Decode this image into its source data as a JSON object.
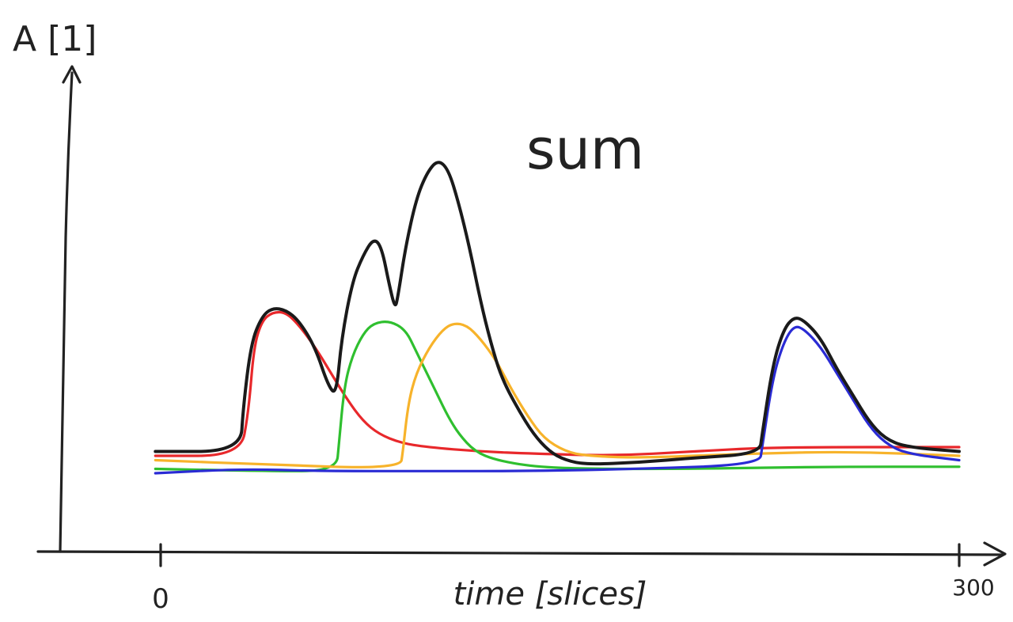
{
  "chart_data": {
    "type": "line",
    "title": "",
    "xlabel": "time [slices]",
    "ylabel": "A [1]",
    "annotation": "sum",
    "x_ticks": [
      {
        "value": 0,
        "label": "0"
      },
      {
        "value": 300,
        "label": "300"
      }
    ],
    "xlim": [
      -30,
      320
    ],
    "ylim": [
      0,
      100
    ],
    "grid": false,
    "legend": "none",
    "series": [
      {
        "color": "#e8282b",
        "points": [
          [
            -2,
            22
          ],
          [
            30,
            22
          ],
          [
            33,
            32
          ],
          [
            35,
            47
          ],
          [
            38,
            53
          ],
          [
            42,
            55
          ],
          [
            47,
            55
          ],
          [
            52,
            52
          ],
          [
            58,
            47
          ],
          [
            64,
            41
          ],
          [
            70,
            35
          ],
          [
            76,
            30
          ],
          [
            82,
            27
          ],
          [
            90,
            25
          ],
          [
            100,
            24
          ],
          [
            120,
            23
          ],
          [
            140,
            22.5
          ],
          [
            170,
            22
          ],
          [
            200,
            23
          ],
          [
            230,
            24
          ],
          [
            300,
            24
          ]
        ]
      },
      {
        "color": "#2fbf2f",
        "points": [
          [
            -2,
            19
          ],
          [
            40,
            18.5
          ],
          [
            66,
            18.5
          ],
          [
            67,
            25
          ],
          [
            69,
            38
          ],
          [
            72,
            45
          ],
          [
            76,
            50
          ],
          [
            80,
            52.5
          ],
          [
            86,
            53
          ],
          [
            92,
            51
          ],
          [
            96,
            46
          ],
          [
            100,
            41
          ],
          [
            104,
            36
          ],
          [
            108,
            31
          ],
          [
            112,
            27
          ],
          [
            118,
            23
          ],
          [
            126,
            21
          ],
          [
            140,
            19.5
          ],
          [
            160,
            19
          ],
          [
            200,
            19
          ],
          [
            250,
            19.5
          ],
          [
            300,
            19.5
          ]
        ]
      },
      {
        "color": "#f7b32b",
        "points": [
          [
            -2,
            21
          ],
          [
            40,
            20
          ],
          [
            90,
            19
          ],
          [
            91,
            23
          ],
          [
            93,
            34
          ],
          [
            96,
            41
          ],
          [
            101,
            47
          ],
          [
            106,
            51
          ],
          [
            110,
            52.5
          ],
          [
            115,
            52
          ],
          [
            120,
            49
          ],
          [
            126,
            44
          ],
          [
            132,
            37
          ],
          [
            138,
            31
          ],
          [
            144,
            26
          ],
          [
            152,
            23
          ],
          [
            160,
            22
          ],
          [
            180,
            21.5
          ],
          [
            220,
            22.5
          ],
          [
            260,
            23
          ],
          [
            300,
            22
          ]
        ]
      },
      {
        "color": "#2a2bd4",
        "points": [
          [
            -2,
            18
          ],
          [
            30,
            19
          ],
          [
            60,
            18.5
          ],
          [
            100,
            18.5
          ],
          [
            140,
            18.5
          ],
          [
            180,
            19
          ],
          [
            225,
            20
          ],
          [
            226,
            24
          ],
          [
            230,
            40
          ],
          [
            234,
            48
          ],
          [
            238,
            52
          ],
          [
            242,
            51
          ],
          [
            248,
            47
          ],
          [
            254,
            41
          ],
          [
            260,
            35
          ],
          [
            266,
            29
          ],
          [
            272,
            25
          ],
          [
            280,
            22.5
          ],
          [
            300,
            21
          ]
        ]
      },
      {
        "color": "#1a1a1a",
        "points": [
          [
            -2,
            23
          ],
          [
            30,
            23
          ],
          [
            31,
            33
          ],
          [
            34,
            48
          ],
          [
            38,
            54
          ],
          [
            42,
            56
          ],
          [
            47,
            55.5
          ],
          [
            52,
            53
          ],
          [
            58,
            47
          ],
          [
            63,
            38
          ],
          [
            66,
            36
          ],
          [
            68,
            49
          ],
          [
            72,
            62
          ],
          [
            76,
            68
          ],
          [
            80,
            72
          ],
          [
            83,
            70
          ],
          [
            86,
            61
          ],
          [
            88,
            56
          ],
          [
            89,
            58
          ],
          [
            92,
            70
          ],
          [
            96,
            81
          ],
          [
            100,
            87
          ],
          [
            104,
            90
          ],
          [
            108,
            88
          ],
          [
            112,
            80
          ],
          [
            116,
            70
          ],
          [
            120,
            58
          ],
          [
            124,
            48
          ],
          [
            128,
            40
          ],
          [
            134,
            33
          ],
          [
            140,
            27
          ],
          [
            146,
            23
          ],
          [
            152,
            21
          ],
          [
            160,
            20
          ],
          [
            180,
            20.5
          ],
          [
            200,
            21.5
          ],
          [
            225,
            22.5
          ],
          [
            226,
            27
          ],
          [
            230,
            43
          ],
          [
            234,
            51
          ],
          [
            238,
            54
          ],
          [
            242,
            53
          ],
          [
            248,
            49
          ],
          [
            254,
            42
          ],
          [
            260,
            36
          ],
          [
            266,
            30
          ],
          [
            272,
            26
          ],
          [
            280,
            24
          ],
          [
            300,
            23
          ]
        ]
      }
    ]
  }
}
